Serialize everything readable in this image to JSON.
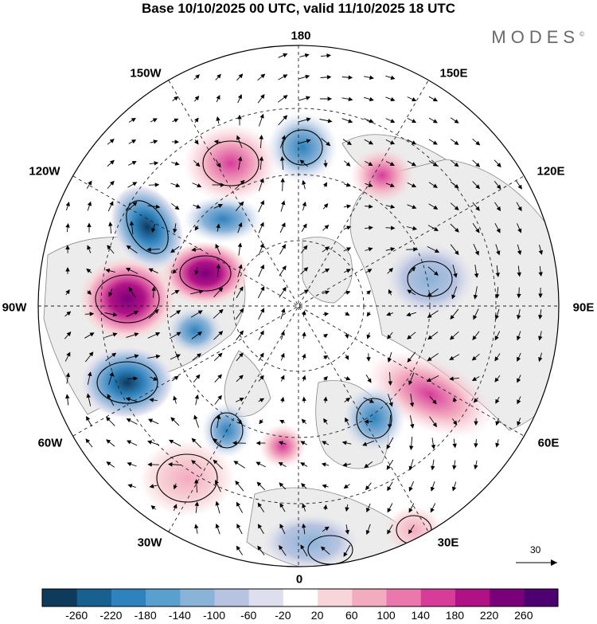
{
  "title": "Base 10/10/2025 00 UTC, valid 11/10/2025 18 UTC",
  "brand": "MODES",
  "brand_mark": "©",
  "longitude_labels": {
    "top": "180",
    "bottom": "0",
    "left": "90W",
    "right": "90E",
    "upper_left_1": "150W",
    "upper_left_2": "120W",
    "upper_right_1": "150E",
    "upper_right_2": "120E",
    "lower_left_1": "60W",
    "lower_left_2": "30W",
    "lower_right_1": "60E",
    "lower_right_2": "30E"
  },
  "reference_vector": {
    "label": "30"
  },
  "colorbar": {
    "colors": [
      "#0e3a5c",
      "#17608f",
      "#2e82bd",
      "#5aa0cf",
      "#8ab3d8",
      "#b7c3e0",
      "#dedfee",
      "#ffffff",
      "#f8d5d8",
      "#f3abc0",
      "#ea78ad",
      "#d63c98",
      "#b01286",
      "#7a007a",
      "#4e0070"
    ],
    "tick_labels": [
      "-260",
      "-220",
      "-180",
      "-140",
      "-100",
      "-60",
      "-20",
      "20",
      "60",
      "100",
      "140",
      "180",
      "220",
      "260"
    ]
  },
  "colors": {
    "land_gray": "#ececec",
    "ocean": "#ffffff",
    "coast": "#888888"
  }
}
